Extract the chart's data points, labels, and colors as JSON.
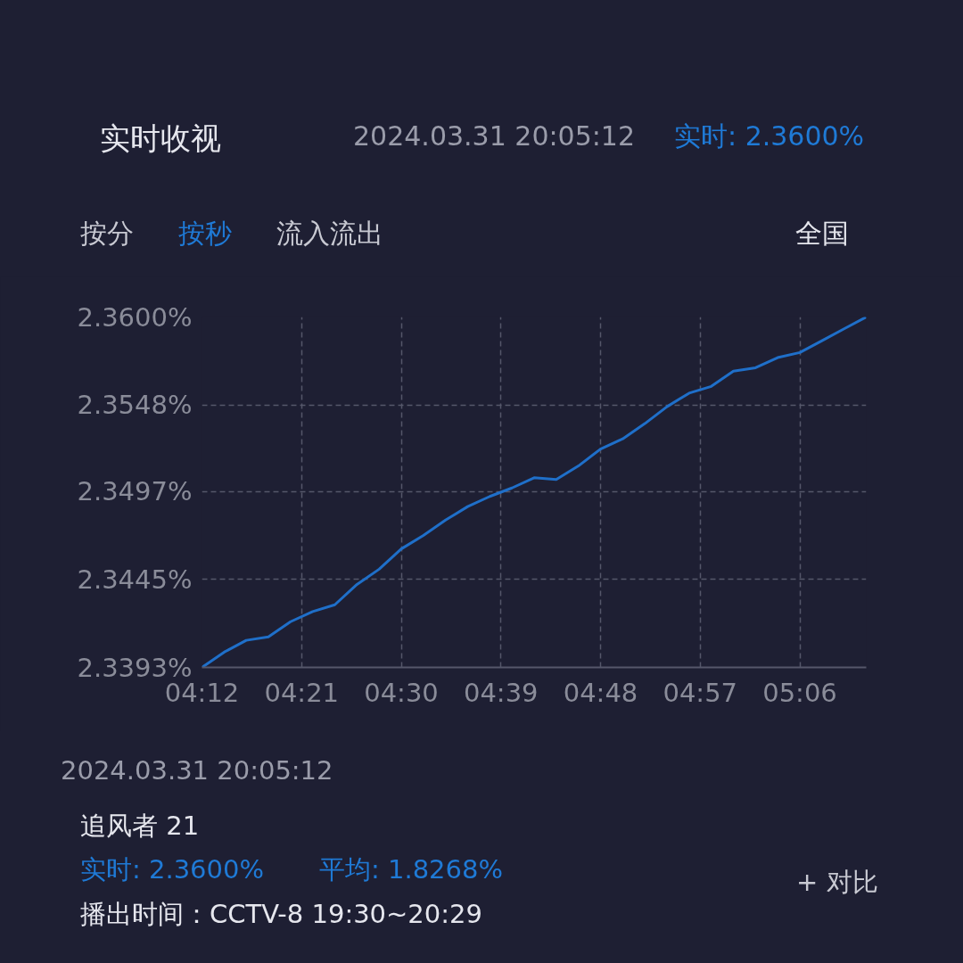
{
  "chart_data": {
    "type": "line",
    "title": "实时收视",
    "annotations": [
      "2024.03.31 20:05:12",
      "实时: 2.3600%",
      "按分",
      "按秒",
      "流入流出",
      "全国",
      "2024.03.31 20:05:12",
      "追风者 21",
      "实时: 2.3600%",
      "平均: 1.8268%",
      "播出时间：CCTV-8 19:30~20:29",
      "+ 对比"
    ],
    "x": [
      4.2,
      4.233333,
      4.266667,
      4.3,
      4.333333,
      4.366667,
      4.4,
      4.433333,
      4.466667,
      4.5,
      4.533333,
      4.566667,
      4.6,
      4.633333,
      4.666667,
      4.7,
      4.733333,
      4.766667,
      4.8,
      4.833333,
      4.866667,
      4.9,
      4.933333,
      4.966667,
      5.0,
      5.033333,
      5.066667,
      5.1,
      5.133333,
      5.166667,
      5.2
    ],
    "series": [
      {
        "color": "#1f6fc9",
        "values": [
          2.3393,
          2.3402,
          2.3409,
          2.3411,
          2.342,
          2.3426,
          2.343,
          2.3442,
          2.3451,
          2.3463,
          2.3471,
          2.348,
          2.3488,
          2.3494,
          2.3499,
          2.3505,
          2.3504,
          2.3512,
          2.3522,
          2.3528,
          2.3537,
          2.3547,
          2.3555,
          2.3559,
          2.3568,
          2.357,
          2.3576,
          2.3579,
          2.3586,
          2.3593,
          2.36
        ]
      }
    ],
    "xlim": [
      4.2,
      5.2
    ],
    "xticks": [
      {
        "value": 4.2,
        "label": "04:12"
      },
      {
        "value": 4.35,
        "label": "04:21"
      },
      {
        "value": 4.5,
        "label": "04:30"
      },
      {
        "value": 4.65,
        "label": "04:39"
      },
      {
        "value": 4.8,
        "label": "04:48"
      },
      {
        "value": 4.95,
        "label": "04:57"
      },
      {
        "value": 5.1,
        "label": "05:06"
      }
    ],
    "ylim": [
      2.3393,
      2.36
    ],
    "yticks": [
      {
        "value": 2.3393,
        "label": "2.3393%"
      },
      {
        "value": 2.3445,
        "label": "2.3445%"
      },
      {
        "value": 2.3497,
        "label": "2.3497%"
      },
      {
        "value": 2.3548,
        "label": "2.3548%"
      },
      {
        "value": 2.36,
        "label": "2.3600%"
      }
    ],
    "grid": true,
    "line_style": "solid",
    "marker": "none"
  }
}
